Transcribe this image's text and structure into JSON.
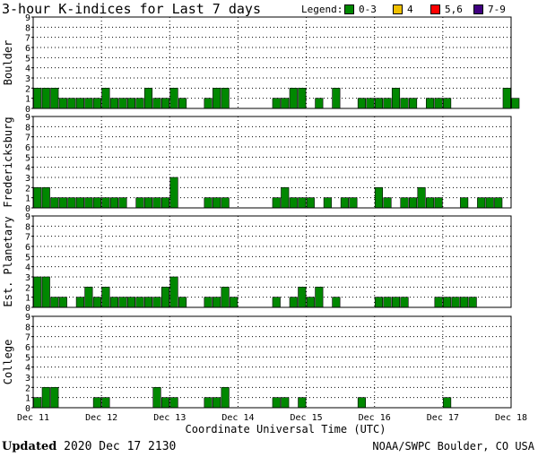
{
  "title": "3-hour K-indices for Last 7 days",
  "legend": {
    "label": "Legend:",
    "items": [
      {
        "label": "0-3",
        "color": "#008800"
      },
      {
        "label": "4",
        "color": "#f0c000"
      },
      {
        "label": "5,6",
        "color": "#ff0000"
      },
      {
        "label": "7-9",
        "color": "#400080"
      }
    ]
  },
  "footer": {
    "updated_label": "Updated",
    "updated_value": "2020 Dec 17 2130",
    "credit": "NOAA/SWPC Boulder, CO USA"
  },
  "chart_data": {
    "type": "bar",
    "xlabel": "Coordinate Universal Time (UTC)",
    "x_ticks": [
      "Dec 11",
      "Dec 12",
      "Dec 13",
      "Dec 14",
      "Dec 15",
      "Dec 16",
      "Dec 17",
      "Dec 18"
    ],
    "ylim": [
      0,
      9
    ],
    "y_ticks": [
      "0",
      "1",
      "2",
      "3",
      "4",
      "5",
      "6",
      "7",
      "8",
      "9"
    ],
    "bar_color": "#008800",
    "grid": true,
    "panels": [
      {
        "name": "Boulder",
        "values": [
          2,
          2,
          2,
          1,
          1,
          1,
          1,
          1,
          2,
          1,
          1,
          1,
          1,
          2,
          1,
          1,
          2,
          1,
          0,
          0,
          1,
          2,
          2,
          0,
          0,
          0,
          0,
          0,
          1,
          1,
          2,
          2,
          0,
          1,
          0,
          2,
          0,
          0,
          1,
          1,
          1,
          1,
          2,
          1,
          1,
          0,
          1,
          1,
          1,
          0,
          0,
          0,
          0,
          0,
          0,
          2,
          1,
          0
        ]
      },
      {
        "name": "Fredericksburg",
        "values": [
          2,
          2,
          1,
          1,
          1,
          1,
          1,
          1,
          1,
          1,
          1,
          0,
          1,
          1,
          1,
          1,
          3,
          0,
          0,
          0,
          1,
          1,
          1,
          0,
          0,
          0,
          0,
          0,
          1,
          2,
          1,
          1,
          1,
          0,
          1,
          0,
          1,
          1,
          0,
          0,
          2,
          1,
          0,
          1,
          1,
          2,
          1,
          1,
          0,
          0,
          1,
          0,
          1,
          1,
          1,
          0
        ]
      },
      {
        "name": "Est. Planetary",
        "values": [
          3,
          3,
          1,
          1,
          0,
          1,
          2,
          1,
          2,
          1,
          1,
          1,
          1,
          1,
          1,
          2,
          3,
          1,
          0,
          0,
          1,
          1,
          2,
          1,
          0,
          0,
          0,
          0,
          1,
          0,
          1,
          2,
          1,
          2,
          0,
          1,
          0,
          0,
          0,
          0,
          1,
          1,
          1,
          1,
          0,
          0,
          0,
          1,
          1,
          1,
          1,
          1,
          0,
          0,
          0,
          0,
          0
        ]
      },
      {
        "name": "College",
        "values": [
          1,
          2,
          2,
          0,
          0,
          0,
          0,
          1,
          1,
          0,
          0,
          0,
          0,
          0,
          2,
          1,
          1,
          0,
          0,
          0,
          1,
          1,
          2,
          0,
          0,
          0,
          0,
          0,
          1,
          1,
          0,
          1,
          0,
          0,
          0,
          0,
          0,
          0,
          1,
          0,
          0,
          0,
          0,
          0,
          0,
          0,
          0,
          0,
          1,
          0,
          0,
          0,
          0,
          0,
          0,
          0,
          0
        ]
      }
    ]
  }
}
